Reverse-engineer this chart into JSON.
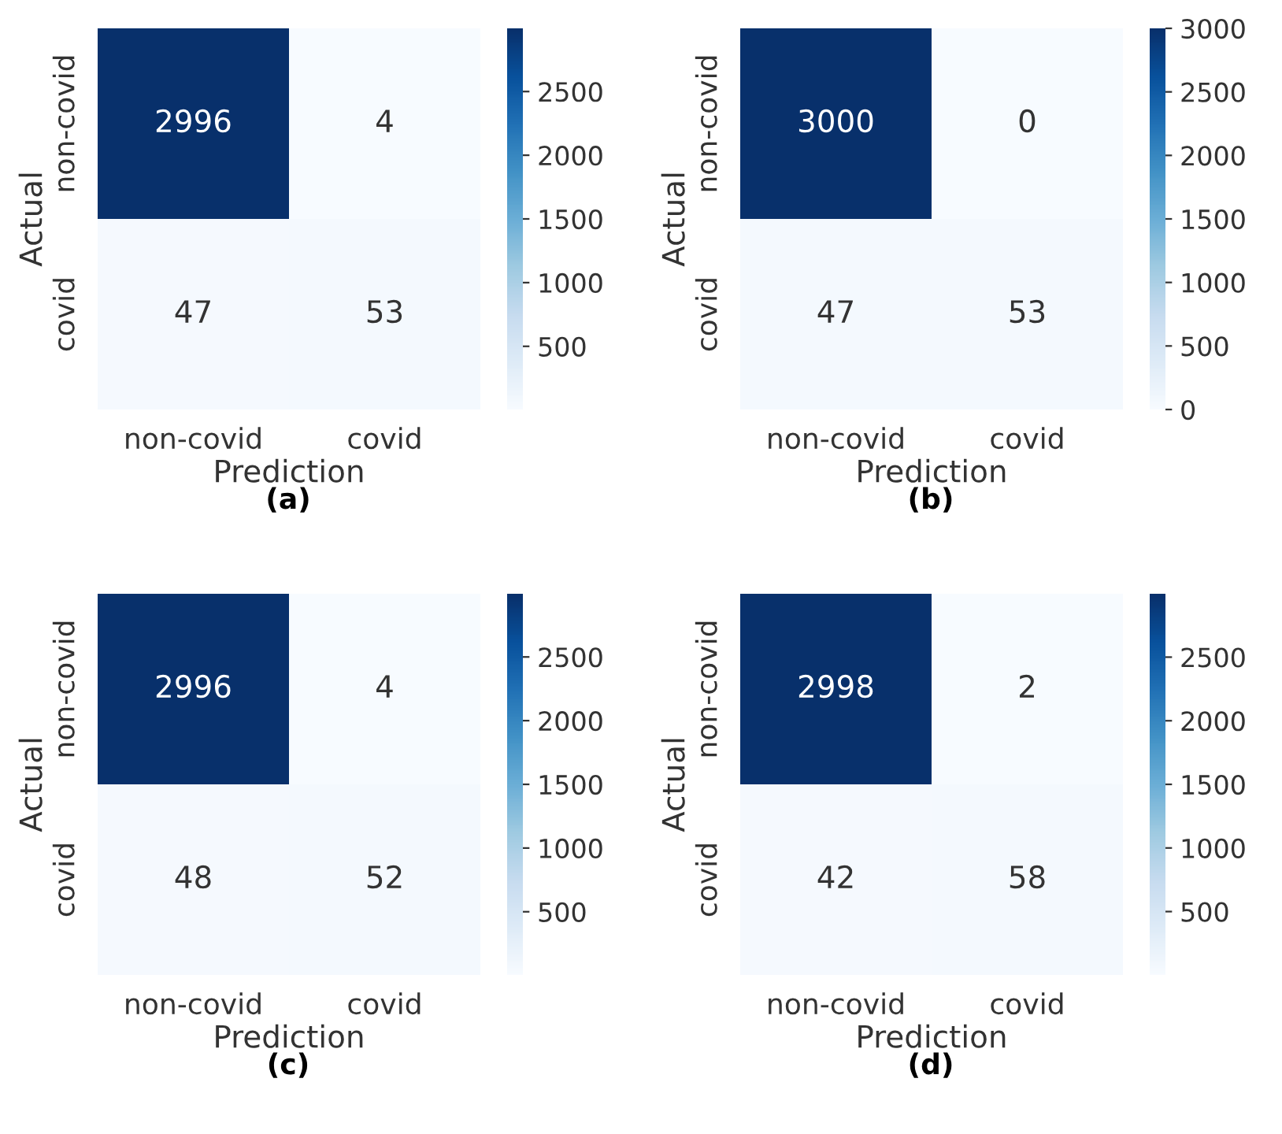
{
  "chart_data": [
    {
      "type": "heatmap",
      "xlabel": "Prediction",
      "ylabel": "Actual",
      "categories": [
        "non-covid",
        "covid"
      ],
      "y_categories": [
        "non-covid",
        "covid"
      ],
      "cells": [
        [
          2996,
          4
        ],
        [
          47,
          53
        ]
      ],
      "clim": [
        4,
        2996
      ],
      "cticks": [
        500,
        1000,
        1500,
        2000,
        2500
      ],
      "data_labels": true,
      "annotations": [
        "(a)"
      ]
    },
    {
      "type": "heatmap",
      "xlabel": "Prediction",
      "ylabel": "Actual",
      "categories": [
        "non-covid",
        "covid"
      ],
      "y_categories": [
        "non-covid",
        "covid"
      ],
      "cells": [
        [
          3000,
          0
        ],
        [
          47,
          53
        ]
      ],
      "clim": [
        0,
        3000
      ],
      "cticks": [
        0,
        500,
        1000,
        1500,
        2000,
        2500,
        3000
      ],
      "data_labels": true,
      "annotations": [
        "(b)"
      ]
    },
    {
      "type": "heatmap",
      "xlabel": "Prediction",
      "ylabel": "Actual",
      "categories": [
        "non-covid",
        "covid"
      ],
      "y_categories": [
        "non-covid",
        "covid"
      ],
      "cells": [
        [
          2996,
          4
        ],
        [
          48,
          52
        ]
      ],
      "clim": [
        4,
        2996
      ],
      "cticks": [
        500,
        1000,
        1500,
        2000,
        2500
      ],
      "data_labels": true,
      "annotations": [
        "(c)"
      ]
    },
    {
      "type": "heatmap",
      "xlabel": "Prediction",
      "ylabel": "Actual",
      "categories": [
        "non-covid",
        "covid"
      ],
      "y_categories": [
        "non-covid",
        "covid"
      ],
      "cells": [
        [
          2998,
          2
        ],
        [
          42,
          58
        ]
      ],
      "clim": [
        2,
        2998
      ],
      "cticks": [
        500,
        1000,
        1500,
        2000,
        2500
      ],
      "data_labels": true,
      "annotations": [
        "(d)"
      ]
    }
  ]
}
